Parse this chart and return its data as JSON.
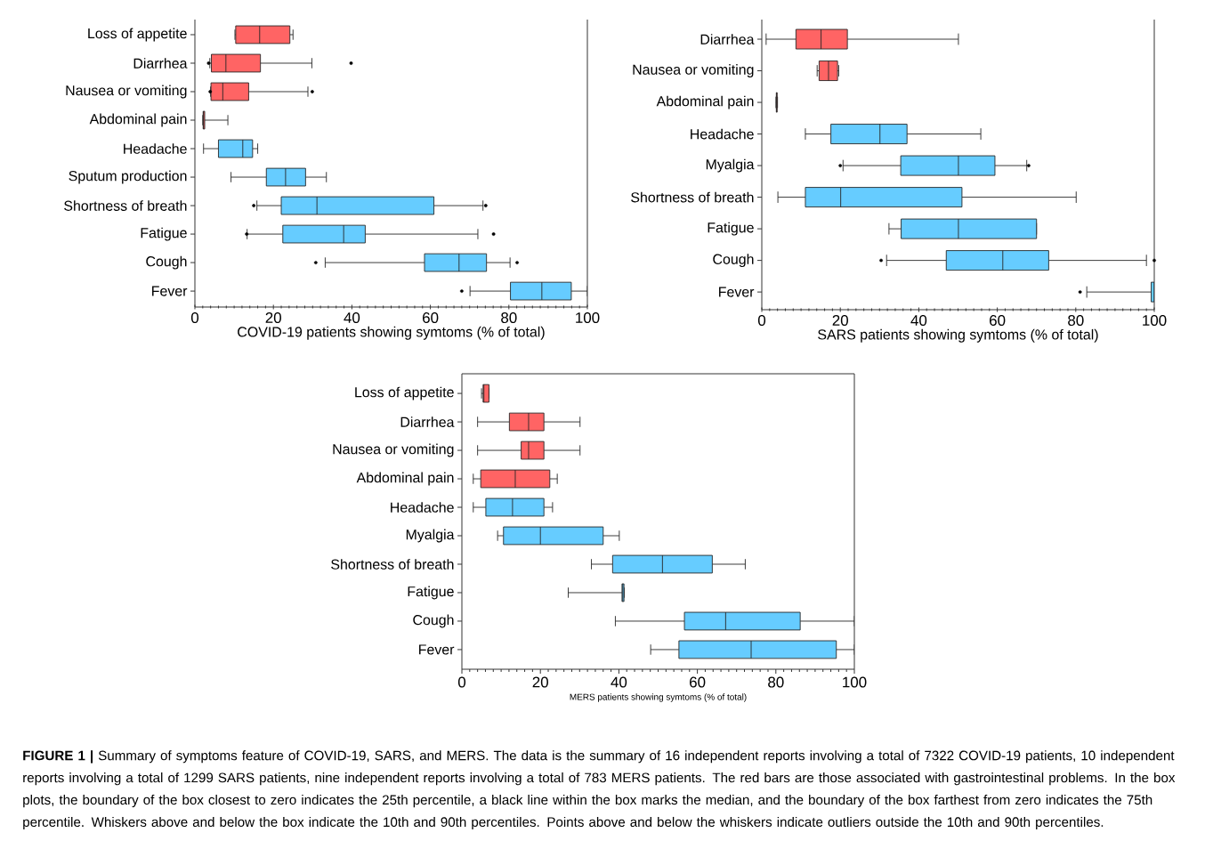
{
  "chart_data": [
    {
      "type": "box",
      "orientation": "horizontal",
      "xlabel": "COVID-19 patients showing symtoms (% of total)",
      "categories": [
        "Loss of appetite",
        "Diarrhea",
        "Nausea or vomiting",
        "Abdominal pain",
        "Headache",
        "Sputum production",
        "Shortness of breath",
        "Fatigue",
        "Cough",
        "Fever"
      ],
      "colors": [
        "#ff6464",
        "#ff6464",
        "#ff6464",
        "#ff6464",
        "#66ccff",
        "#66ccff",
        "#66ccff",
        "#66ccff",
        "#66ccff",
        "#66ccff"
      ],
      "boxes": [
        {
          "low": 10.2,
          "q1": 10.4,
          "median": 16.5,
          "q3": 24.2,
          "high": 25.0
        },
        {
          "low": 3.8,
          "q1": 4.2,
          "median": 7.9,
          "q3": 16.7,
          "high": 29.8,
          "outliers": [
            3.5,
            39.8
          ]
        },
        {
          "low": 4.0,
          "q1": 4.1,
          "median": 7.1,
          "q3": 13.7,
          "high": 28.8,
          "outliers": [
            3.9,
            29.9
          ]
        },
        {
          "low": 2.0,
          "q1": 2.1,
          "median": 2.2,
          "q3": 2.5,
          "high": 8.4
        },
        {
          "low": 2.2,
          "q1": 6.0,
          "median": 12.2,
          "q3": 14.7,
          "high": 16.0
        },
        {
          "low": 9.2,
          "q1": 18.2,
          "median": 23.1,
          "q3": 28.2,
          "high": 33.5
        },
        {
          "low": 15.8,
          "q1": 22.0,
          "median": 31.1,
          "q3": 60.9,
          "high": 73.4,
          "outliers": [
            15.0,
            74.1
          ]
        },
        {
          "low": 13.3,
          "q1": 22.4,
          "median": 37.9,
          "q3": 43.4,
          "high": 72.1,
          "outliers": [
            13.2,
            76.1
          ]
        },
        {
          "low": 33.2,
          "q1": 58.5,
          "median": 67.3,
          "q3": 74.3,
          "high": 80.3,
          "outliers": [
            30.8,
            82.1
          ]
        },
        {
          "low": 70.1,
          "q1": 80.4,
          "median": 88.4,
          "q3": 95.9,
          "high": 100,
          "outliers": [
            68.0
          ]
        }
      ],
      "xlim": [
        0,
        100
      ],
      "xticks": [
        0,
        20,
        40,
        60,
        80,
        100
      ]
    },
    {
      "type": "box",
      "orientation": "horizontal",
      "xlabel": "SARS patients showing symtoms (% of total)",
      "categories": [
        "Diarrhea",
        "Nausea or vomiting",
        "Abdominal pain",
        "Headache",
        "Myalgia",
        "Shortness of breath",
        "Fatigue",
        "Cough",
        "Fever"
      ],
      "colors": [
        "#ff6464",
        "#ff6464",
        "#ff6464",
        "#66ccff",
        "#66ccff",
        "#66ccff",
        "#66ccff",
        "#66ccff",
        "#66ccff"
      ],
      "boxes": [
        {
          "low": 1.1,
          "q1": 8.7,
          "median": 15.1,
          "q3": 21.8,
          "high": 50.1
        },
        {
          "low": 14.1,
          "q1": 14.6,
          "median": 17.0,
          "q3": 19.3,
          "high": 19.6
        },
        {
          "low": 3.6,
          "q1": 3.7,
          "median": 3.8,
          "q3": 3.9,
          "high": 4.0
        },
        {
          "low": 11.1,
          "q1": 17.6,
          "median": 30.1,
          "q3": 37.0,
          "high": 55.8
        },
        {
          "low": 20.7,
          "q1": 35.4,
          "median": 50.1,
          "q3": 59.4,
          "high": 67.5,
          "outliers": [
            20.0,
            68.0
          ]
        },
        {
          "low": 4.1,
          "q1": 11.1,
          "median": 20.1,
          "q3": 51.0,
          "high": 80.1
        },
        {
          "low": 32.4,
          "q1": 35.5,
          "median": 50.1,
          "q3": 70.0,
          "high": 70.0
        },
        {
          "low": 31.8,
          "q1": 47.0,
          "median": 61.4,
          "q3": 73.1,
          "high": 98.0,
          "outliers": [
            30.4,
            100
          ]
        },
        {
          "low": 82.8,
          "q1": 99.2,
          "median": 100,
          "q3": 100,
          "high": 100,
          "outliers": [
            81.1
          ]
        }
      ],
      "xlim": [
        0,
        100
      ],
      "xticks": [
        0,
        20,
        40,
        60,
        80,
        100
      ]
    },
    {
      "type": "box",
      "orientation": "horizontal",
      "xlabel": "MERS patients showing symtoms (% of total)",
      "categories": [
        "Loss of appetite",
        "Diarrhea",
        "Nausea or vomiting",
        "Abdominal pain",
        "Headache",
        "Myalgia",
        "Shortness of breath",
        "Fatigue",
        "Cough",
        "Fever"
      ],
      "colors": [
        "#ff6464",
        "#ff6464",
        "#ff6464",
        "#ff6464",
        "#66ccff",
        "#66ccff",
        "#66ccff",
        "#66ccff",
        "#66ccff",
        "#66ccff"
      ],
      "boxes": [
        {
          "low": 5.0,
          "q1": 5.4,
          "median": 5.6,
          "q3": 6.9,
          "high": 6.9
        },
        {
          "low": 4.0,
          "q1": 12.1,
          "median": 17.0,
          "q3": 20.9,
          "high": 30.1
        },
        {
          "low": 4.0,
          "q1": 15.1,
          "median": 17.0,
          "q3": 20.9,
          "high": 30.1
        },
        {
          "low": 2.9,
          "q1": 4.8,
          "median": 13.6,
          "q3": 22.4,
          "high": 24.3
        },
        {
          "low": 2.9,
          "q1": 6.1,
          "median": 12.9,
          "q3": 20.9,
          "high": 23.1
        },
        {
          "low": 9.1,
          "q1": 10.6,
          "median": 20.0,
          "q3": 36.0,
          "high": 40.1
        },
        {
          "low": 33.0,
          "q1": 38.4,
          "median": 51.1,
          "q3": 63.8,
          "high": 72.2
        },
        {
          "low": 27.1,
          "q1": 40.8,
          "median": 41.0,
          "q3": 41.3,
          "high": 41.4
        },
        {
          "low": 39.1,
          "q1": 56.7,
          "median": 67.2,
          "q3": 86.2,
          "high": 100
        },
        {
          "low": 48.1,
          "q1": 55.3,
          "median": 73.7,
          "q3": 95.4,
          "high": 100
        }
      ],
      "xlim": [
        0,
        100
      ],
      "xticks": [
        0,
        20,
        40,
        60,
        80,
        100
      ],
      "annotations": [
        "**FIGURE 1 |** Summary of symptoms feature of COVID-19, SARS, and MERS. The data is the summary of 16 independent reports involving a total of 7322 COVID-19 patients, 10 independent reports involving a total of 1299 SARS patients, nine independent reports involving a total of 783 MERS patients. The red bars are those associated with gastrointestinal problems. In the box plots, the boundary of the box closest to zero indicates the 25th percentile, a black line within the box marks the median, and the boundary of the box farthest from zero indicates the 75th percentile. Whiskers above and below the box indicate the 10th and 90th percentiles. Points above and below the whiskers indicate outliers outside the 10th and 90th percentiles."
      ]
    }
  ]
}
